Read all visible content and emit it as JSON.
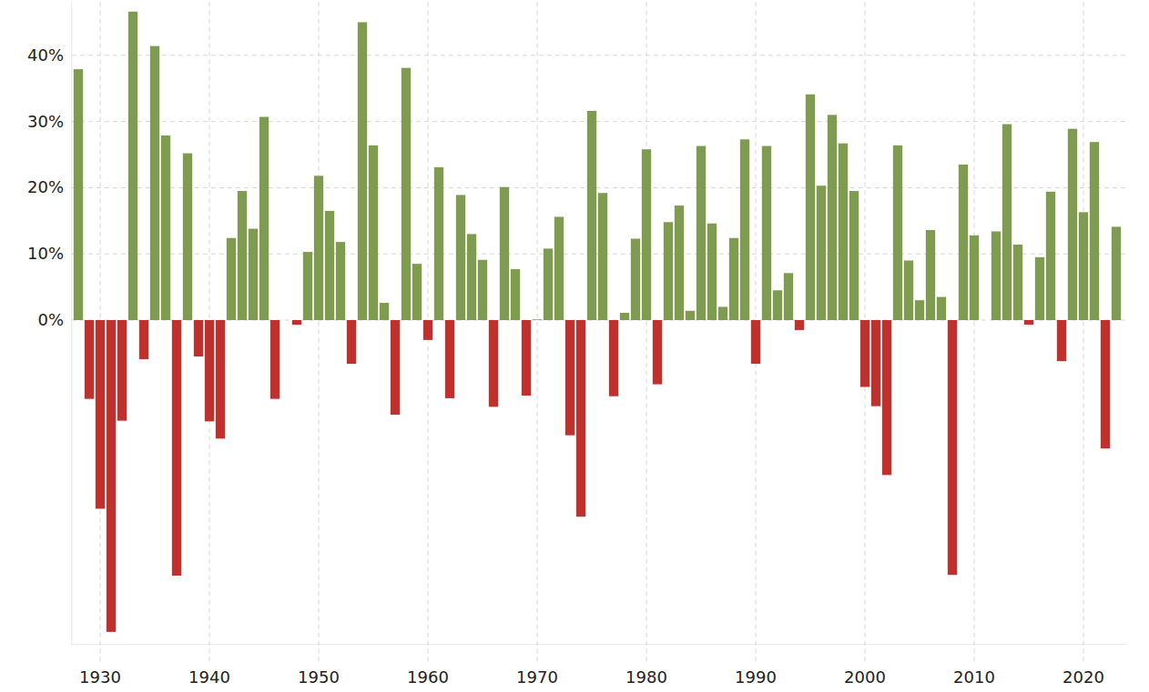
{
  "chart_data": {
    "type": "bar",
    "x": [
      1928,
      1929,
      1930,
      1931,
      1932,
      1933,
      1934,
      1935,
      1936,
      1937,
      1938,
      1939,
      1940,
      1941,
      1942,
      1943,
      1944,
      1945,
      1946,
      1947,
      1948,
      1949,
      1950,
      1951,
      1952,
      1953,
      1954,
      1955,
      1956,
      1957,
      1958,
      1959,
      1960,
      1961,
      1962,
      1963,
      1964,
      1965,
      1966,
      1967,
      1968,
      1969,
      1970,
      1971,
      1972,
      1973,
      1974,
      1975,
      1976,
      1977,
      1978,
      1979,
      1980,
      1981,
      1982,
      1983,
      1984,
      1985,
      1986,
      1987,
      1988,
      1989,
      1990,
      1991,
      1992,
      1993,
      1994,
      1995,
      1996,
      1997,
      1998,
      1999,
      2000,
      2001,
      2002,
      2003,
      2004,
      2005,
      2006,
      2007,
      2008,
      2009,
      2010,
      2011,
      2012,
      2013,
      2014,
      2015,
      2016,
      2017,
      2018,
      2019,
      2020,
      2021,
      2022,
      2023
    ],
    "values": [
      37.9,
      -11.9,
      -28.5,
      -47.1,
      -15.2,
      46.6,
      -5.9,
      41.4,
      27.9,
      -38.6,
      25.2,
      -5.5,
      -15.3,
      -17.9,
      12.4,
      19.5,
      13.8,
      30.7,
      -11.9,
      0.0,
      -0.7,
      10.3,
      21.8,
      16.5,
      11.8,
      -6.6,
      45.0,
      26.4,
      2.6,
      -14.3,
      38.1,
      8.5,
      -3.0,
      23.1,
      -11.8,
      18.9,
      13.0,
      9.1,
      -13.1,
      20.1,
      7.7,
      -11.4,
      0.1,
      10.8,
      15.6,
      -17.4,
      -29.7,
      31.6,
      19.2,
      -11.5,
      1.1,
      12.3,
      25.8,
      -9.7,
      14.8,
      17.3,
      1.4,
      26.3,
      14.6,
      2.0,
      12.4,
      27.3,
      -6.6,
      26.3,
      4.5,
      7.1,
      -1.5,
      34.1,
      20.3,
      31.0,
      26.7,
      19.5,
      -10.1,
      -13.0,
      -23.4,
      26.4,
      9.0,
      3.0,
      13.6,
      3.5,
      -38.5,
      23.5,
      12.8,
      0.0,
      13.4,
      29.6,
      11.4,
      -0.7,
      9.5,
      19.4,
      -6.2,
      28.9,
      16.3,
      26.9,
      -19.4,
      14.1
    ],
    "colors": [
      "#7e9b4f",
      "#c0302d",
      "#c0302d",
      "#c0302d",
      "#c0302d",
      "#7e9b4f",
      "#c0302d",
      "#7e9b4f",
      "#7e9b4f",
      "#c0302d",
      "#7e9b4f",
      "#c0302d",
      "#c0302d",
      "#c0302d",
      "#7e9b4f",
      "#7e9b4f",
      "#7e9b4f",
      "#7e9b4f",
      "#c0302d",
      "#7e9b4f",
      "#c0302d",
      "#7e9b4f",
      "#7e9b4f",
      "#7e9b4f",
      "#7e9b4f",
      "#c0302d",
      "#7e9b4f",
      "#7e9b4f",
      "#7e9b4f",
      "#c0302d",
      "#7e9b4f",
      "#7e9b4f",
      "#c0302d",
      "#7e9b4f",
      "#c0302d",
      "#7e9b4f",
      "#7e9b4f",
      "#7e9b4f",
      "#c0302d",
      "#7e9b4f",
      "#7e9b4f",
      "#c0302d",
      "#7e9b4f",
      "#7e9b4f",
      "#7e9b4f",
      "#c0302d",
      "#c0302d",
      "#7e9b4f",
      "#7e9b4f",
      "#c0302d",
      "#7e9b4f",
      "#7e9b4f",
      "#7e9b4f",
      "#c0302d",
      "#7e9b4f",
      "#7e9b4f",
      "#7e9b4f",
      "#7e9b4f",
      "#7e9b4f",
      "#7e9b4f",
      "#7e9b4f",
      "#7e9b4f",
      "#c0302d",
      "#7e9b4f",
      "#7e9b4f",
      "#7e9b4f",
      "#c0302d",
      "#7e9b4f",
      "#7e9b4f",
      "#7e9b4f",
      "#7e9b4f",
      "#7e9b4f",
      "#c0302d",
      "#c0302d",
      "#c0302d",
      "#7e9b4f",
      "#7e9b4f",
      "#7e9b4f",
      "#7e9b4f",
      "#7e9b4f",
      "#c0302d",
      "#7e9b4f",
      "#7e9b4f",
      "#7e9b4f",
      "#7e9b4f",
      "#7e9b4f",
      "#7e9b4f",
      "#c0302d",
      "#7e9b4f",
      "#7e9b4f",
      "#c0302d",
      "#7e9b4f",
      "#7e9b4f",
      "#7e9b4f",
      "#c0302d",
      "#7e9b4f"
    ],
    "xlim": [
      1927.4,
      2023.9
    ],
    "xticks": [
      1930,
      1940,
      1950,
      1960,
      1970,
      1980,
      1990,
      2000,
      2010,
      2020
    ],
    "ylim": [
      -49,
      48
    ],
    "yticks": [
      {
        "value": 0,
        "label": "0%"
      },
      {
        "value": 10,
        "label": "10%"
      },
      {
        "value": 20,
        "label": "20%"
      },
      {
        "value": 30,
        "label": "30%"
      },
      {
        "value": 40,
        "label": "40%"
      }
    ],
    "grid": true
  }
}
